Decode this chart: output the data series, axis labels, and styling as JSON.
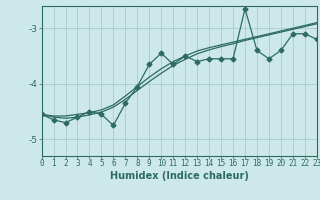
{
  "title": "",
  "xlabel": "Humidex (Indice chaleur)",
  "x_data": [
    0,
    1,
    2,
    3,
    4,
    5,
    6,
    7,
    8,
    9,
    10,
    11,
    12,
    13,
    14,
    15,
    16,
    17,
    18,
    19,
    20,
    21,
    22,
    23
  ],
  "y_zigzag": [
    -4.55,
    -4.65,
    -4.7,
    -4.6,
    -4.5,
    -4.55,
    -4.75,
    -4.35,
    -4.05,
    -3.65,
    -3.45,
    -3.65,
    -3.5,
    -3.6,
    -3.55,
    -3.55,
    -3.55,
    -2.65,
    -3.4,
    -3.55,
    -3.4,
    -3.1,
    -3.1,
    -3.2
  ],
  "y_line1": [
    -4.55,
    -4.58,
    -4.58,
    -4.55,
    -4.52,
    -4.47,
    -4.38,
    -4.22,
    -4.05,
    -3.88,
    -3.73,
    -3.6,
    -3.5,
    -3.41,
    -3.35,
    -3.3,
    -3.25,
    -3.2,
    -3.15,
    -3.1,
    -3.05,
    -3.0,
    -2.95,
    -2.9
  ],
  "y_line2": [
    -4.55,
    -4.6,
    -4.62,
    -4.6,
    -4.56,
    -4.51,
    -4.42,
    -4.28,
    -4.12,
    -3.96,
    -3.81,
    -3.67,
    -3.56,
    -3.46,
    -3.39,
    -3.33,
    -3.28,
    -3.22,
    -3.17,
    -3.12,
    -3.07,
    -3.02,
    -2.97,
    -2.92
  ],
  "xlim": [
    0,
    23
  ],
  "ylim": [
    -5.3,
    -2.6
  ],
  "yticks": [
    -5,
    -4,
    -3
  ],
  "bg_color": "#cde8e8",
  "line_color": "#2d6b60",
  "grid_color": "#aacccc",
  "marker_style": "D",
  "marker_size": 2.5,
  "line_width": 0.9,
  "tick_fontsize": 5.5,
  "xlabel_fontsize": 7
}
